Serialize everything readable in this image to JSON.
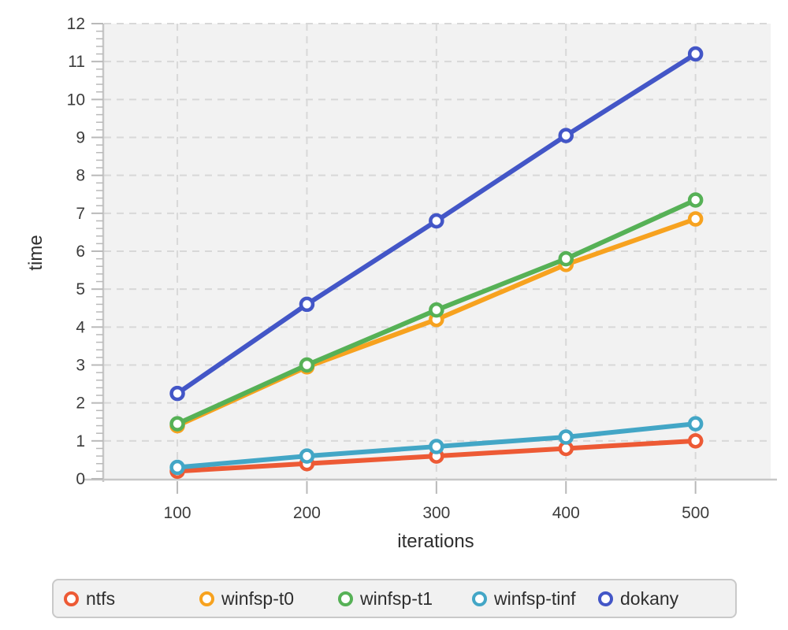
{
  "chart_data": {
    "type": "line",
    "title": "",
    "xlabel": "iterations",
    "ylabel": "time",
    "x": [
      100,
      200,
      300,
      400,
      500
    ],
    "x_ticks": [
      100,
      200,
      300,
      400,
      500
    ],
    "y_ticks": [
      0,
      1,
      2,
      3,
      4,
      5,
      6,
      7,
      8,
      9,
      10,
      11,
      12
    ],
    "xlim": [
      44,
      558
    ],
    "ylim": [
      0,
      12
    ],
    "y_minor_step": 0.2,
    "grid": true,
    "grid_style": "dashed",
    "legend_position": "bottom",
    "series": [
      {
        "name": "ntfs",
        "color": "#ed5a35",
        "values": [
          0.2,
          0.4,
          0.6,
          0.8,
          1.0
        ]
      },
      {
        "name": "winfsp-t0",
        "color": "#f7a21f",
        "values": [
          1.4,
          2.95,
          4.2,
          5.65,
          6.85
        ]
      },
      {
        "name": "winfsp-t1",
        "color": "#56b156",
        "values": [
          1.45,
          3.0,
          4.45,
          5.8,
          7.35
        ]
      },
      {
        "name": "winfsp-tinf",
        "color": "#43a6c6",
        "values": [
          0.3,
          0.6,
          0.85,
          1.1,
          1.45
        ]
      },
      {
        "name": "dokany",
        "color": "#4356c7",
        "values": [
          2.25,
          4.6,
          6.8,
          9.05,
          11.2
        ]
      }
    ],
    "colors": {
      "plot_bg": "#f2f2f2",
      "grid": "#d8d8d8",
      "axis": "#c7c7c7",
      "tick": "#b9b9b9",
      "tick_text": "#3c3c3c"
    }
  }
}
